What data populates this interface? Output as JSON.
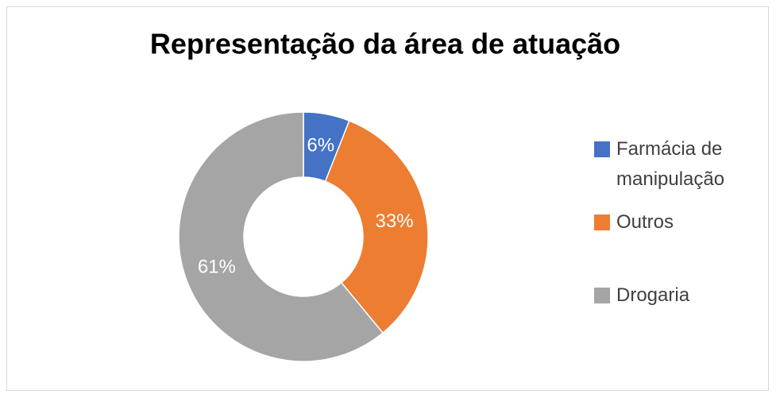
{
  "chart_data": {
    "type": "donut",
    "title": "Representação da área de atuação",
    "categories": [
      "Farmácia de manipulação",
      "Outros",
      "Drogaria"
    ],
    "values": [
      6,
      33,
      61
    ],
    "value_labels": [
      "6%",
      "33%",
      "61%"
    ],
    "colors": [
      "#4472c4",
      "#ed7d31",
      "#a5a5a5"
    ],
    "legend": "right"
  }
}
